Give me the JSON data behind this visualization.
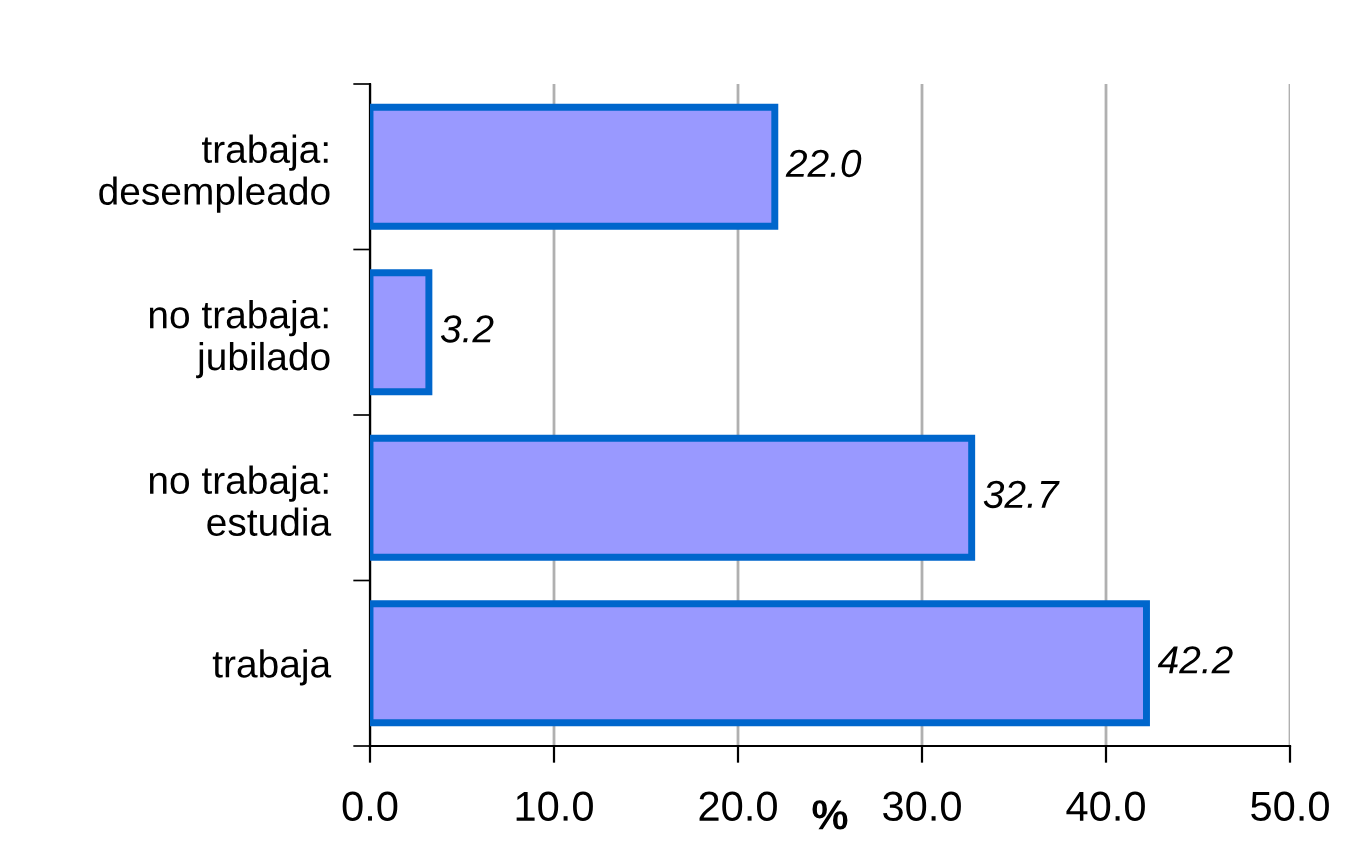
{
  "chart_data": {
    "type": "bar",
    "orientation": "horizontal",
    "xlabel": "%",
    "categories": [
      "trabaja:\ndesempleado",
      "no trabaja:\njubilado",
      "no trabaja:\nestudia",
      "trabaja"
    ],
    "values": [
      22.0,
      3.2,
      32.7,
      42.2
    ],
    "color": "#9999ff",
    "xlim": [
      0,
      50
    ],
    "xticks": [
      {
        "value": 0,
        "label": "0.0"
      },
      {
        "value": 10,
        "label": "10.0"
      },
      {
        "value": 20,
        "label": "20.0"
      },
      {
        "value": 30,
        "label": "30.0"
      },
      {
        "value": 40,
        "label": "40.0"
      },
      {
        "value": 50,
        "label": "50.0"
      }
    ],
    "value_labels": [
      "22.0",
      "3.2",
      "32.7",
      "42.2"
    ],
    "grid": "x",
    "legend": false
  }
}
